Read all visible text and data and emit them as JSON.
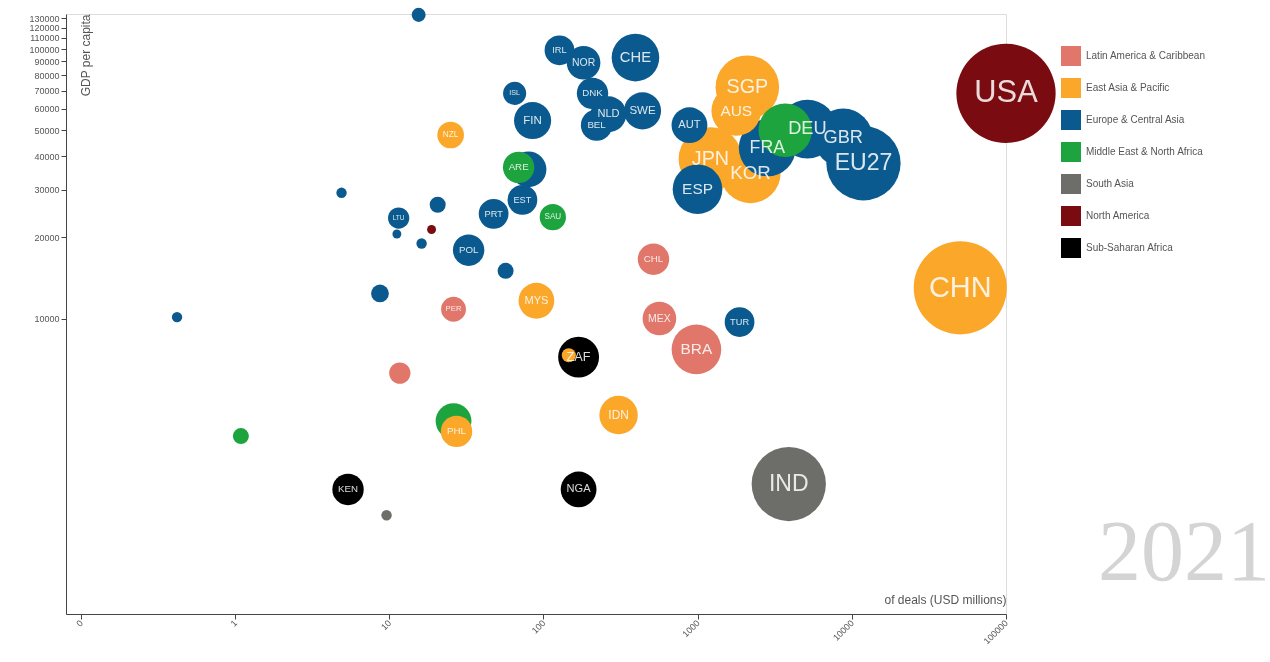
{
  "chart_data": {
    "type": "bubble",
    "xlabel": "of deals (USD millions)",
    "ylabel": "GDP per capita",
    "log": "xy",
    "xlim": [
      0.08,
      100000
    ],
    "xticks": [
      {
        "value": 0.1,
        "label": "0"
      },
      1,
      10,
      100,
      1000,
      10000,
      100000
    ],
    "ylim": [
      800,
      135000
    ],
    "yticks": [
      10000,
      20000,
      30000,
      40000,
      50000,
      60000,
      70000,
      80000,
      90000,
      100000,
      110000,
      120000,
      130000
    ],
    "grid": false,
    "legend": "right",
    "series": [
      {
        "name": "Latin America & Caribbean",
        "color": "#e0776a",
        "x": [
          982,
          565,
          517,
          26.1,
          11.7
        ],
        "values": [
          7680,
          10000,
          16600,
          10820,
          6270
        ],
        "sizes": [
          0.25,
          0.115,
          0.1,
          0.0625,
          0.046
        ]
      },
      {
        "name": "East Asia & Pacific",
        "color": "#fba72a",
        "x": [
          2100,
          1780,
          1210,
          2200,
          50500,
          90,
          307,
          146,
          27.3,
          25
        ],
        "values": [
          72200,
          59000,
          39100,
          34700,
          13000,
          11640,
          4380,
          7300,
          3810,
          48000
        ],
        "sizes": [
          0.41,
          0.25,
          0.41,
          0.37,
          0.88,
          0.13,
          0.15,
          0.02,
          0.1,
          0.072
        ]
      },
      {
        "name": "Europe & Central Asia",
        "color": "#0b5a8f",
        "x": [
          15.5,
          127,
          182,
          395,
          65,
          208,
          264,
          439,
          221,
          85,
          885,
          5150,
          8800,
          11900,
          2830,
          998,
          1870,
          80,
          73,
          47.5,
          32.7,
          11.5,
          20.6,
          4.9,
          11.2,
          16.2,
          56.8,
          8.7,
          0.42
        ],
        "values": [
          134000,
          99000,
          89000,
          93000,
          68500,
          68500,
          57300,
          59000,
          52200,
          54300,
          52200,
          50500,
          46800,
          37700,
          43000,
          30200,
          9700,
          35800,
          27560,
          24460,
          17930,
          23590,
          26440,
          29280,
          20590,
          18990,
          15030,
          12390,
          10120
        ],
        "sizes": [
          0.02,
          0.09,
          0.115,
          0.23,
          0.054,
          0.1,
          0.13,
          0.14,
          0.1,
          0.14,
          0.13,
          0.35,
          0.35,
          0.56,
          0.33,
          0.25,
          0.09,
          0.13,
          0.09,
          0.09,
          0.1,
          0.046,
          0.026,
          0.011,
          0.008,
          0.011,
          0.026,
          0.032,
          0.011
        ]
      },
      {
        "name": "Middle East & North Africa",
        "color": "#1ea43f",
        "x": [
          69,
          115,
          3700,
          1.09,
          26.1
        ],
        "values": [
          36400,
          23780,
          50000,
          3660,
          4160
        ],
        "sizes": [
          0.1,
          0.07,
          0.29,
          0.026,
          0.13
        ]
      },
      {
        "name": "South Asia",
        "color": "#6d6d6a",
        "x": [
          3900,
          9.6
        ],
        "values": [
          2430,
          1860
        ],
        "sizes": [
          0.56,
          0.011
        ]
      },
      {
        "name": "North America",
        "color": "#7a0b10",
        "x": [
          100000,
          4300,
          18.8
        ],
        "values": [
          68500,
          null,
          21400
        ],
        "sizes": [
          1,
          null,
          0.008
        ]
      },
      {
        "name": "Sub-Saharan Africa",
        "color": "#000000",
        "x": [
          169,
          169,
          5.4
        ],
        "values": [
          7190,
          2320,
          2320
        ],
        "sizes": [
          0.17,
          0.13,
          0.1
        ]
      }
    ],
    "annotations": [
      {
        "text": "IRL",
        "x": 127,
        "y": 99000
      },
      {
        "text": "NOR",
        "x": 182,
        "y": 89000
      },
      {
        "text": "CHE",
        "x": 395,
        "y": 93000
      },
      {
        "text": "ISL",
        "x": 65,
        "y": 68500
      },
      {
        "text": "DNK",
        "x": 208,
        "y": 68500
      },
      {
        "text": "NLD",
        "x": 264,
        "y": 57300
      },
      {
        "text": "SWE",
        "x": 439,
        "y": 59000
      },
      {
        "text": "BEL",
        "x": 221,
        "y": 52200
      },
      {
        "text": "FIN",
        "x": 85,
        "y": 54300
      },
      {
        "text": "AUT",
        "x": 885,
        "y": 52200
      },
      {
        "text": "SGP",
        "x": 2100,
        "y": 72200
      },
      {
        "text": "AUS",
        "x": 1780,
        "y": 59000
      },
      {
        "text": "DEU",
        "x": 5150,
        "y": 50500
      },
      {
        "text": "GBR",
        "x": 8800,
        "y": 46800
      },
      {
        "text": "EU27",
        "x": 11900,
        "y": 37700
      },
      {
        "text": "FRA",
        "x": 2830,
        "y": 43000
      },
      {
        "text": "JPN",
        "x": 1210,
        "y": 39100
      },
      {
        "text": "KOR",
        "x": 2200,
        "y": 34700
      },
      {
        "text": "ESP",
        "x": 998,
        "y": 30200
      },
      {
        "text": "USA",
        "x": 100000,
        "y": 68500
      },
      {
        "text": "CHN",
        "x": 50500,
        "y": 13000
      },
      {
        "text": "IND",
        "x": 3900,
        "y": 2430
      },
      {
        "text": "BRA",
        "x": 982,
        "y": 7680
      },
      {
        "text": "MEX",
        "x": 565,
        "y": 10000
      },
      {
        "text": "CHL",
        "x": 517,
        "y": 16600
      },
      {
        "text": "TUR",
        "x": 1870,
        "y": 9700
      },
      {
        "text": "MYS",
        "x": 90,
        "y": 11640
      },
      {
        "text": "ZAF",
        "x": 169,
        "y": 7190
      },
      {
        "text": "IDN",
        "x": 307,
        "y": 4380
      },
      {
        "text": "NGA",
        "x": 169,
        "y": 2320
      },
      {
        "text": "KEN",
        "x": 5.4,
        "y": 2320
      },
      {
        "text": "ARE",
        "x": 69,
        "y": 36400
      },
      {
        "text": "EST",
        "x": 73,
        "y": 27560
      },
      {
        "text": "SAU",
        "x": 115,
        "y": 23780
      },
      {
        "text": "PRT",
        "x": 47.5,
        "y": 24460
      },
      {
        "text": "POL",
        "x": 32.7,
        "y": 17930
      },
      {
        "text": "LTU",
        "x": 11.5,
        "y": 23590
      },
      {
        "text": "NZL",
        "x": 25,
        "y": 48000
      },
      {
        "text": "PER",
        "x": 26.1,
        "y": 10820
      },
      {
        "text": "PHL",
        "x": 27.3,
        "y": 3810
      },
      "2021"
    ]
  }
}
